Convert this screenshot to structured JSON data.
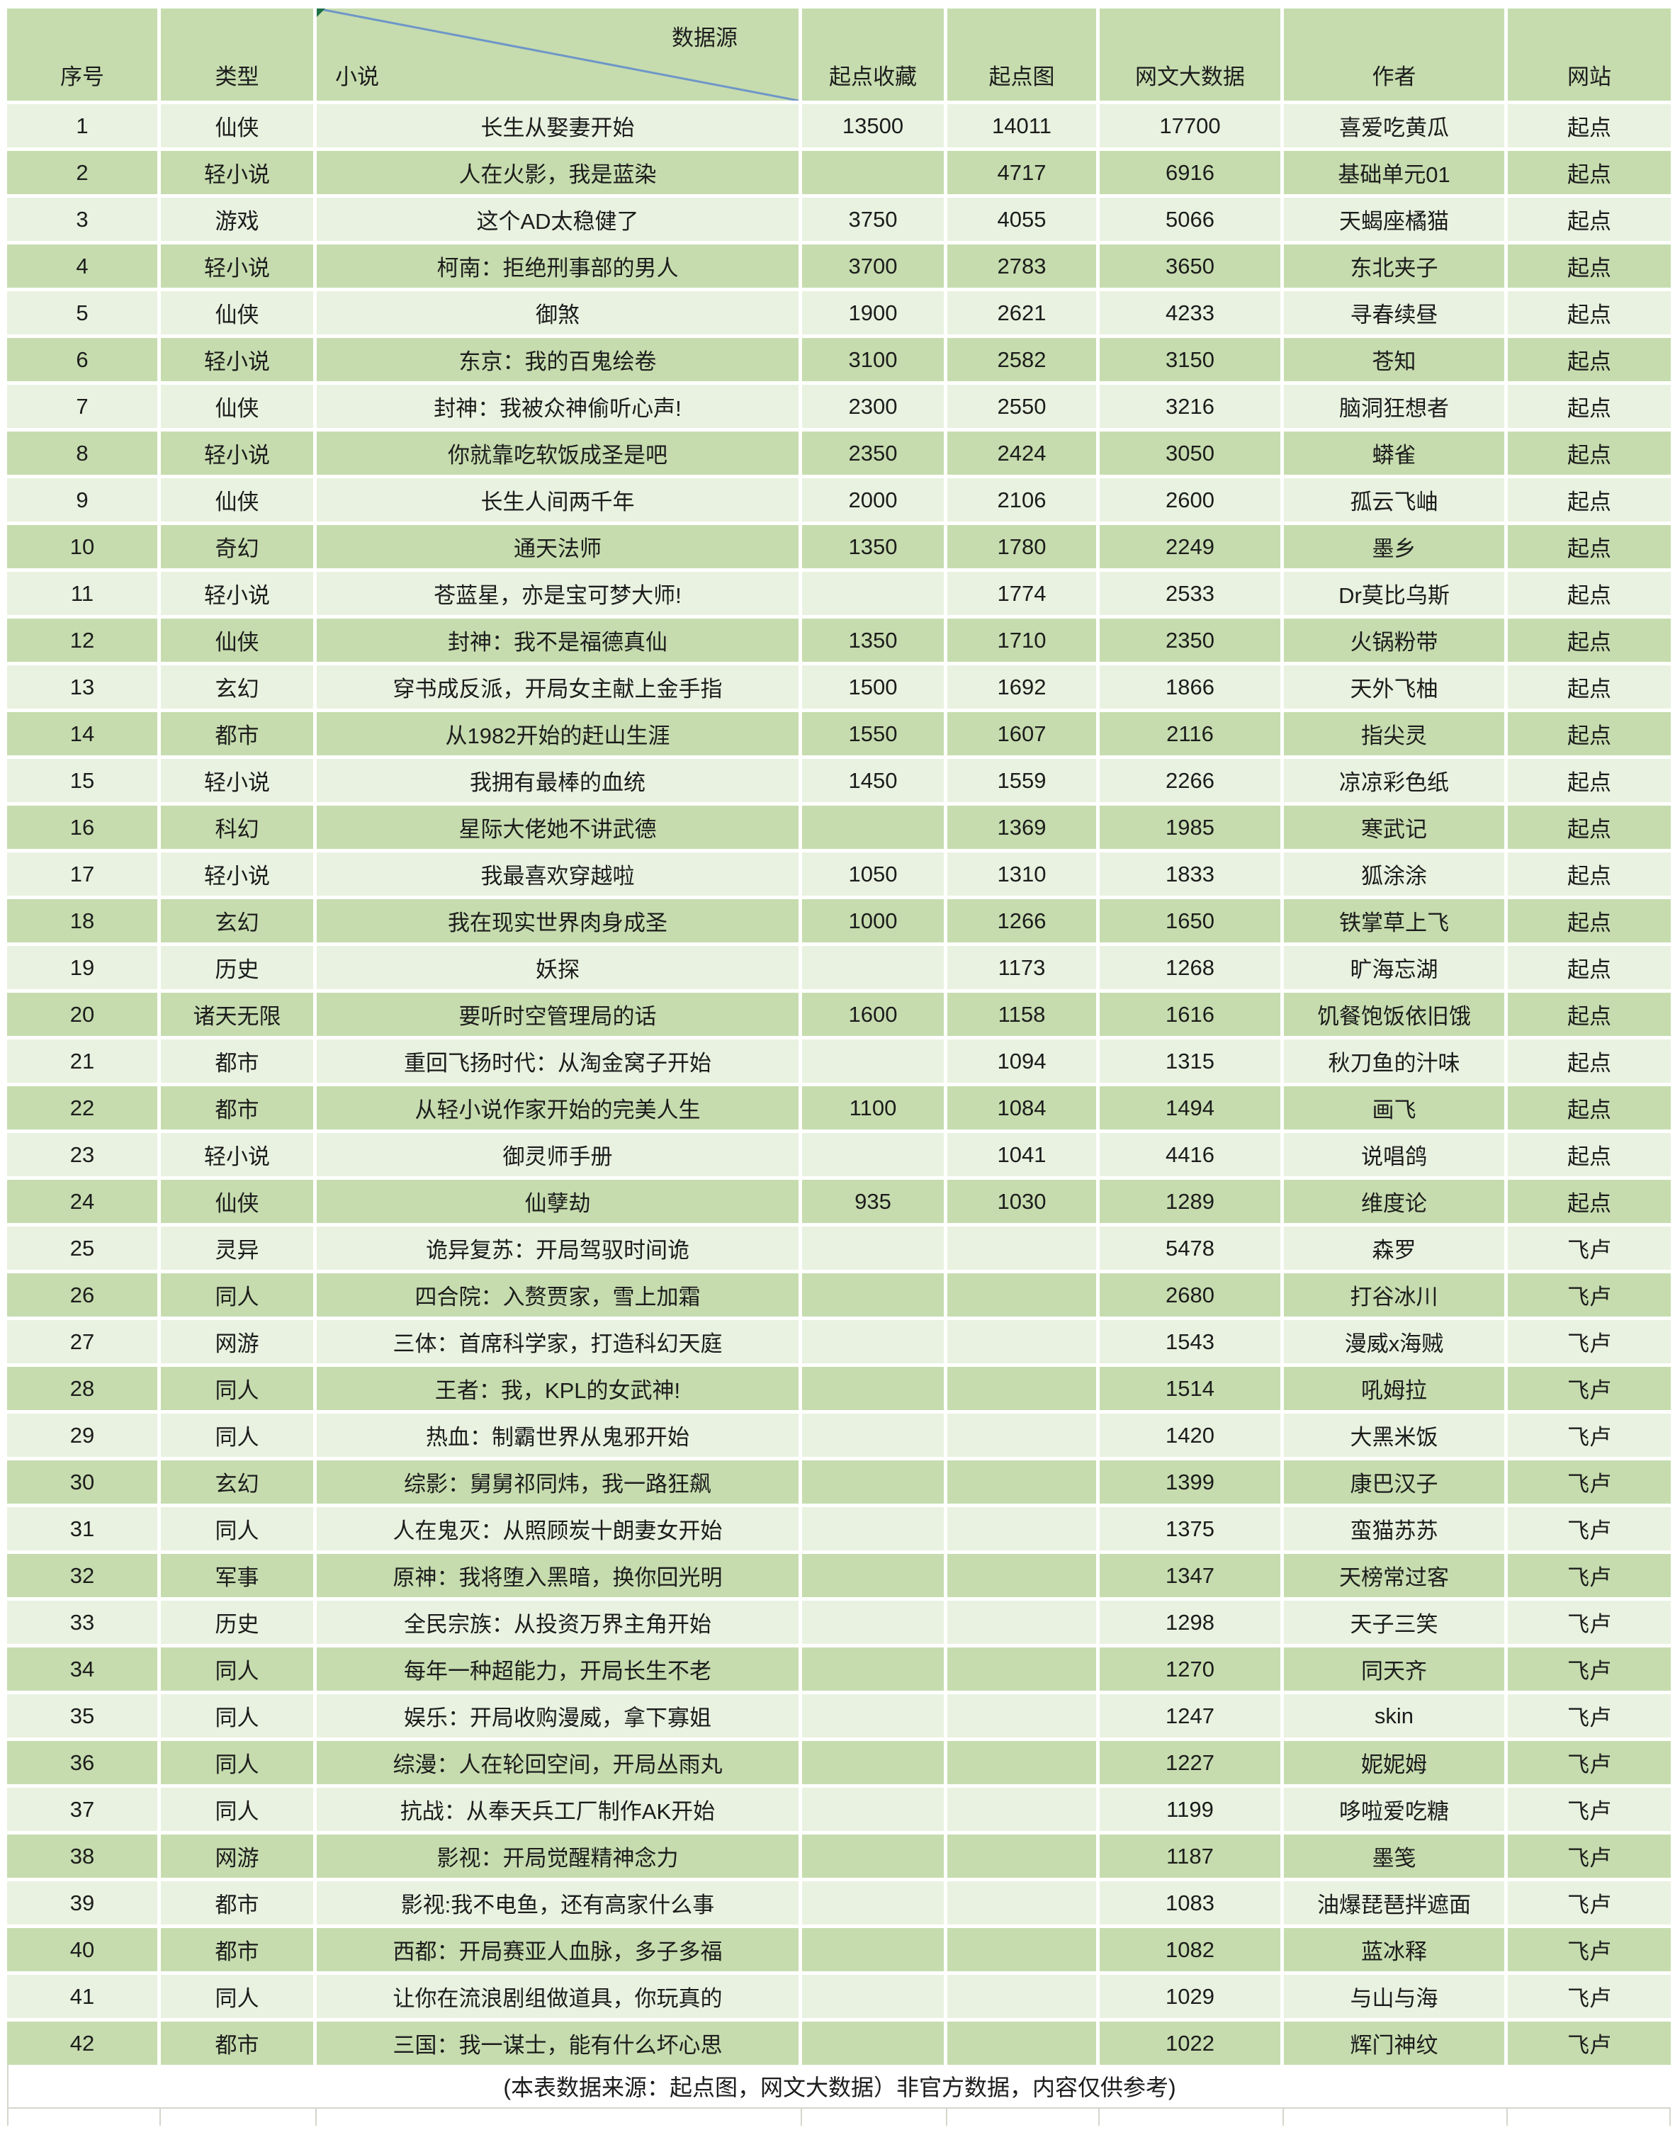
{
  "header": {
    "col_no": "序号",
    "col_type": "类型",
    "col_novel": "小说",
    "data_source_label": "数据源",
    "col_qidian_fav": "起点收藏",
    "col_qidian_chart": "起点图",
    "col_bigdata": "网文大数据",
    "col_author": "作者",
    "col_site": "网站"
  },
  "rows": [
    [
      "1",
      "仙侠",
      "长生从娶妻开始",
      "13500",
      "14011",
      "17700",
      "喜爱吃黄瓜",
      "起点"
    ],
    [
      "2",
      "轻小说",
      "人在火影，我是蓝染",
      "",
      "4717",
      "6916",
      "基础单元01",
      "起点"
    ],
    [
      "3",
      "游戏",
      "这个AD太稳健了",
      "3750",
      "4055",
      "5066",
      "天蝎座橘猫",
      "起点"
    ],
    [
      "4",
      "轻小说",
      "柯南：拒绝刑事部的男人",
      "3700",
      "2783",
      "3650",
      "东北夹子",
      "起点"
    ],
    [
      "5",
      "仙侠",
      "御煞",
      "1900",
      "2621",
      "4233",
      "寻春续昼",
      "起点"
    ],
    [
      "6",
      "轻小说",
      "东京：我的百鬼绘卷",
      "3100",
      "2582",
      "3150",
      "苍知",
      "起点"
    ],
    [
      "7",
      "仙侠",
      "封神：我被众神偷听心声!",
      "2300",
      "2550",
      "3216",
      "脑洞狂想者",
      "起点"
    ],
    [
      "8",
      "轻小说",
      "你就靠吃软饭成圣是吧",
      "2350",
      "2424",
      "3050",
      "蟒雀",
      "起点"
    ],
    [
      "9",
      "仙侠",
      "长生人间两千年",
      "2000",
      "2106",
      "2600",
      "孤云飞岫",
      "起点"
    ],
    [
      "10",
      "奇幻",
      "通天法师",
      "1350",
      "1780",
      "2249",
      "墨乡",
      "起点"
    ],
    [
      "11",
      "轻小说",
      "苍蓝星，亦是宝可梦大师!",
      "",
      "1774",
      "2533",
      "Dr莫比乌斯",
      "起点"
    ],
    [
      "12",
      "仙侠",
      "封神：我不是福德真仙",
      "1350",
      "1710",
      "2350",
      "火锅粉带",
      "起点"
    ],
    [
      "13",
      "玄幻",
      "穿书成反派，开局女主献上金手指",
      "1500",
      "1692",
      "1866",
      "天外飞柚",
      "起点"
    ],
    [
      "14",
      "都市",
      "从1982开始的赶山生涯",
      "1550",
      "1607",
      "2116",
      "指尖灵",
      "起点"
    ],
    [
      "15",
      "轻小说",
      "我拥有最棒的血统",
      "1450",
      "1559",
      "2266",
      "凉凉彩色纸",
      "起点"
    ],
    [
      "16",
      "科幻",
      "星际大佬她不讲武德",
      "",
      "1369",
      "1985",
      "寒武记",
      "起点"
    ],
    [
      "17",
      "轻小说",
      "我最喜欢穿越啦",
      "1050",
      "1310",
      "1833",
      "狐涂涂",
      "起点"
    ],
    [
      "18",
      "玄幻",
      "我在现实世界肉身成圣",
      "1000",
      "1266",
      "1650",
      "铁掌草上飞",
      "起点"
    ],
    [
      "19",
      "历史",
      "妖探",
      "",
      "1173",
      "1268",
      "旷海忘湖",
      "起点"
    ],
    [
      "20",
      "诸天无限",
      "要听时空管理局的话",
      "1600",
      "1158",
      "1616",
      "饥餐饱饭依旧饿",
      "起点"
    ],
    [
      "21",
      "都市",
      "重回飞扬时代：从淘金窝子开始",
      "",
      "1094",
      "1315",
      "秋刀鱼的汁味",
      "起点"
    ],
    [
      "22",
      "都市",
      "从轻小说作家开始的完美人生",
      "1100",
      "1084",
      "1494",
      "画飞",
      "起点"
    ],
    [
      "23",
      "轻小说",
      "御灵师手册",
      "",
      "1041",
      "4416",
      "说唱鸽",
      "起点"
    ],
    [
      "24",
      "仙侠",
      "仙孽劫",
      "935",
      "1030",
      "1289",
      "维度论",
      "起点"
    ],
    [
      "25",
      "灵异",
      "诡异复苏：开局驾驭时间诡",
      "",
      "",
      "5478",
      "森罗",
      "飞卢"
    ],
    [
      "26",
      "同人",
      "四合院：入赘贾家，雪上加霜",
      "",
      "",
      "2680",
      "打谷冰川",
      "飞卢"
    ],
    [
      "27",
      "网游",
      "三体：首席科学家，打造科幻天庭",
      "",
      "",
      "1543",
      "漫威x海贼",
      "飞卢"
    ],
    [
      "28",
      "同人",
      "王者：我，KPL的女武神!",
      "",
      "",
      "1514",
      "吼姆拉",
      "飞卢"
    ],
    [
      "29",
      "同人",
      "热血：制霸世界从鬼邪开始",
      "",
      "",
      "1420",
      "大黑米饭",
      "飞卢"
    ],
    [
      "30",
      "玄幻",
      "综影：舅舅祁同炜，我一路狂飙",
      "",
      "",
      "1399",
      "康巴汉子",
      "飞卢"
    ],
    [
      "31",
      "同人",
      "人在鬼灭：从照顾炭十朗妻女开始",
      "",
      "",
      "1375",
      "蛮猫苏苏",
      "飞卢"
    ],
    [
      "32",
      "军事",
      "原神：我将堕入黑暗，换你回光明",
      "",
      "",
      "1347",
      "天榜常过客",
      "飞卢"
    ],
    [
      "33",
      "历史",
      "全民宗族：从投资万界主角开始",
      "",
      "",
      "1298",
      "天子三笑",
      "飞卢"
    ],
    [
      "34",
      "同人",
      "每年一种超能力，开局长生不老",
      "",
      "",
      "1270",
      "同天齐",
      "飞卢"
    ],
    [
      "35",
      "同人",
      "娱乐：开局收购漫威，拿下寡姐",
      "",
      "",
      "1247",
      "skin",
      "飞卢"
    ],
    [
      "36",
      "同人",
      "综漫：人在轮回空间，开局丛雨丸",
      "",
      "",
      "1227",
      "妮妮姆",
      "飞卢"
    ],
    [
      "37",
      "同人",
      "抗战：从奉天兵工厂制作AK开始",
      "",
      "",
      "1199",
      "哆啦爱吃糖",
      "飞卢"
    ],
    [
      "38",
      "网游",
      "影视：开局觉醒精神念力",
      "",
      "",
      "1187",
      "墨笺",
      "飞卢"
    ],
    [
      "39",
      "都市",
      "影视:我不电鱼，还有高家什么事",
      "",
      "",
      "1083",
      "油爆琵琶拌遮面",
      "飞卢"
    ],
    [
      "40",
      "都市",
      "西都：开局赛亚人血脉，多子多福",
      "",
      "",
      "1082",
      "蓝冰释",
      "飞卢"
    ],
    [
      "41",
      "同人",
      "让你在流浪剧组做道具，你玩真的",
      "",
      "",
      "1029",
      "与山与海",
      "飞卢"
    ],
    [
      "42",
      "都市",
      "三国：我一谋士，能有什么坏心思",
      "",
      "",
      "1022",
      "辉门神纹",
      "飞卢"
    ]
  ],
  "footer": {
    "note": "(本表数据来源：起点图，网文大数据）非官方数据，内容仅供参考)"
  },
  "annotations": {
    "comment_markers": [
      {
        "location": "novel-header-cell"
      },
      {
        "row": 5,
        "col_index": 5
      }
    ]
  },
  "colors": {
    "row_light": "#e9f2e0",
    "row_dark": "#c6dcae",
    "header_fill": "#c6dcae",
    "gridline": "#ffffff",
    "outside_gridline": "#d2d7cb",
    "diagonal_line": "#6e96c8",
    "comment_marker": "#1d7044",
    "text": "#1c1c1c"
  }
}
